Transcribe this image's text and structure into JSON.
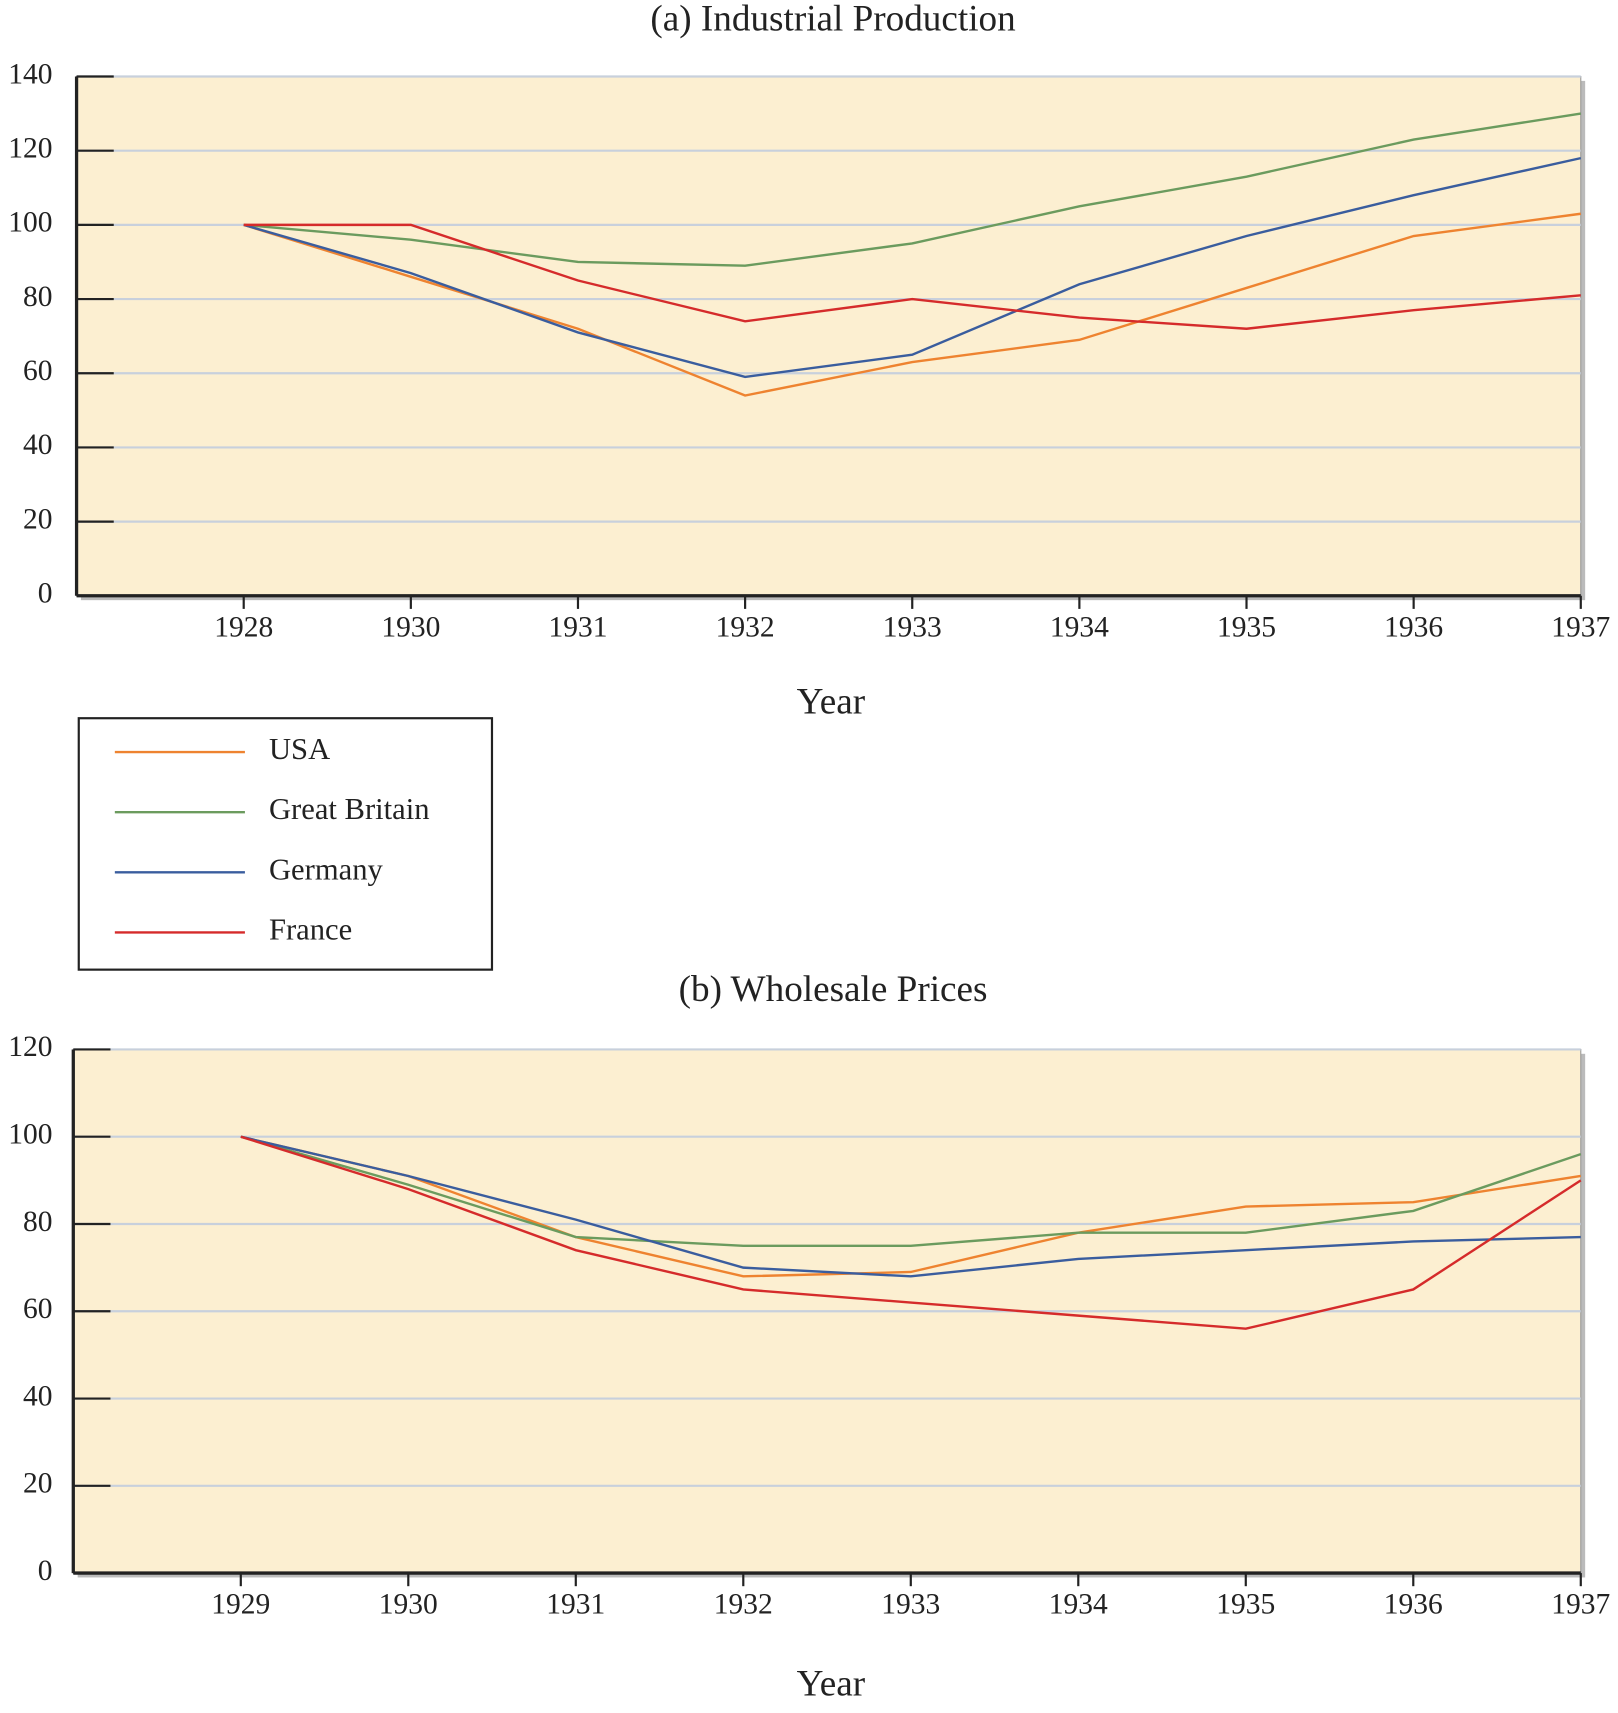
{
  "chart_data": [
    {
      "type": "line",
      "title": "(a) Industrial Production",
      "xlabel": "Year",
      "categories": [
        "1928",
        "1930",
        "1931",
        "1932",
        "1933",
        "1934",
        "1935",
        "1936",
        "1937"
      ],
      "ylim": [
        0,
        140
      ],
      "yticks": [
        0,
        20,
        40,
        60,
        80,
        100,
        120,
        140
      ],
      "grid": true,
      "series": [
        {
          "name": "USA",
          "color": "#ee8330",
          "values": [
            100,
            86,
            72,
            54,
            63,
            69,
            83,
            97,
            103
          ]
        },
        {
          "name": "Great Britain",
          "color": "#6b9b5e",
          "values": [
            100,
            96,
            90,
            89,
            95,
            105,
            113,
            123,
            130
          ]
        },
        {
          "name": "Germany",
          "color": "#3a5d9e",
          "values": [
            100,
            87,
            71,
            59,
            65,
            84,
            97,
            108,
            118
          ]
        },
        {
          "name": "France",
          "color": "#d52b2b",
          "values": [
            100,
            100,
            85,
            74,
            80,
            75,
            72,
            77,
            81
          ]
        }
      ]
    },
    {
      "type": "line",
      "title": "(b) Wholesale Prices",
      "xlabel": "Year",
      "categories": [
        "1929",
        "1930",
        "1931",
        "1932",
        "1933",
        "1934",
        "1935",
        "1936",
        "1937"
      ],
      "ylim": [
        0,
        120
      ],
      "yticks": [
        0,
        20,
        40,
        60,
        80,
        100,
        120
      ],
      "grid": true,
      "series": [
        {
          "color": "#ee8330",
          "values": [
            100,
            91,
            77,
            68,
            69,
            78,
            84,
            85,
            91
          ]
        },
        {
          "color": "#6b9b5e",
          "values": [
            100,
            89,
            77,
            75,
            75,
            78,
            78,
            83,
            96
          ]
        },
        {
          "color": "#3a5d9e",
          "values": [
            100,
            91,
            81,
            70,
            68,
            72,
            74,
            76,
            77
          ]
        },
        {
          "color": "#d52b2b",
          "values": [
            100,
            88,
            74,
            65,
            62,
            59,
            56,
            65,
            90
          ]
        }
      ]
    }
  ]
}
